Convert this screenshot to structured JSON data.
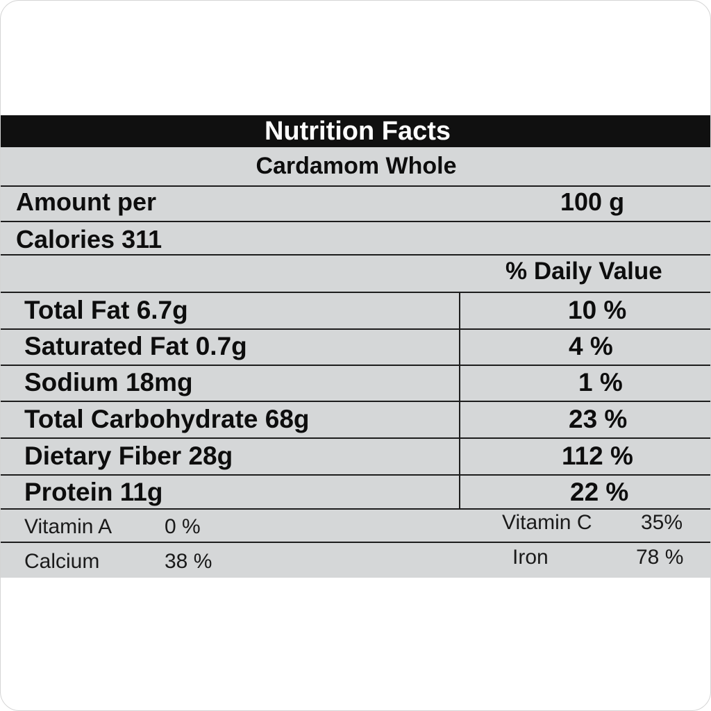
{
  "label": {
    "title": "Nutrition Facts",
    "product_name": "Cardamom Whole",
    "amount_per_label": "Amount per",
    "serving_size": "100 g",
    "calories": "Calories 311",
    "daily_value_header": "% Daily Value"
  },
  "nutrients": [
    {
      "name": "Total Fat 6.7g",
      "dv": "10 %"
    },
    {
      "name": "Saturated Fat 0.7g",
      "dv": "4 %"
    },
    {
      "name": "Sodium 18mg",
      "dv": "1 %"
    },
    {
      "name": "Total Carbohydrate 68g",
      "dv": "23 %"
    },
    {
      "name": "Dietary Fiber 28g",
      "dv": "112 %"
    },
    {
      "name": "Protein 11g",
      "dv": "22 %"
    }
  ],
  "vitamins": [
    {
      "name": "Vitamin A",
      "value": "0 %"
    },
    {
      "name": "Vitamin C",
      "value": "35%"
    },
    {
      "name": "Calcium",
      "value": "38 %"
    },
    {
      "name": "Iron",
      "value": "78 %"
    }
  ]
}
